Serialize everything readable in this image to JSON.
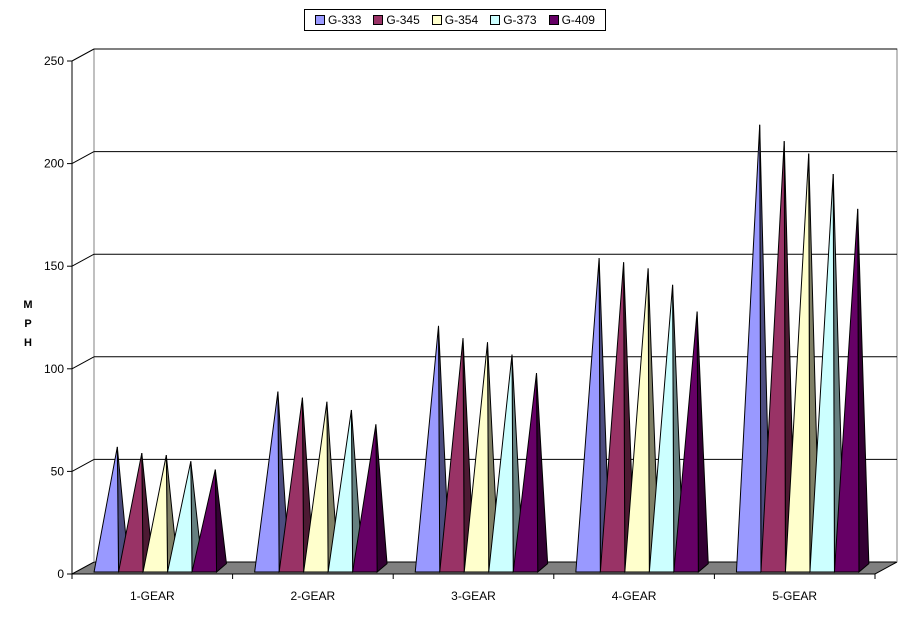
{
  "chart_data": {
    "type": "bar",
    "categories": [
      "1-GEAR",
      "2-GEAR",
      "3-GEAR",
      "4-GEAR",
      "5-GEAR"
    ],
    "series": [
      {
        "name": "G-333",
        "color": "#9999FF",
        "values": [
          59,
          86,
          118,
          151,
          216
        ]
      },
      {
        "name": "G-345",
        "color": "#993366",
        "values": [
          56,
          83,
          112,
          149,
          208
        ]
      },
      {
        "name": "G-354",
        "color": "#FFFFCC",
        "values": [
          55,
          81,
          110,
          146,
          202
        ]
      },
      {
        "name": "G-373",
        "color": "#CCFFFF",
        "values": [
          52,
          77,
          104,
          138,
          192
        ]
      },
      {
        "name": "G-409",
        "color": "#660066",
        "values": [
          48,
          70,
          95,
          125,
          175
        ]
      }
    ],
    "ylabel": [
      "M",
      "P",
      "H"
    ],
    "ylim": [
      0,
      250
    ],
    "yticks": [
      "0",
      "50",
      "100",
      "150",
      "200",
      "250"
    ],
    "grid": true,
    "legend_position": "top"
  }
}
